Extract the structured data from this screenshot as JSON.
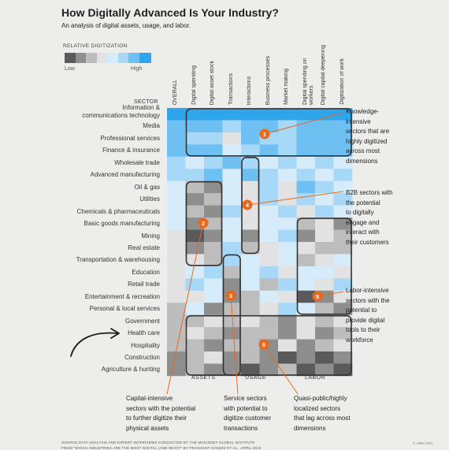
{
  "title": "How Digitally Advanced Is Your Industry?",
  "subtitle": "An analysis of digital assets, usage, and labor.",
  "legend": {
    "title": "RELATIVE DIGITIZATION",
    "low": "Low",
    "high": "High",
    "colors": [
      "#5a5a5a",
      "#8e8e8e",
      "#bdbdbd",
      "#e2e2e2",
      "#d6ecfb",
      "#a7d8f7",
      "#6fc0f2",
      "#2fa6ec"
    ]
  },
  "sector_heading": "SECTOR",
  "groups": [
    "ASSETS",
    "USAGE",
    "LABOR"
  ],
  "chart_data": {
    "type": "heatmap",
    "columns": [
      "OVERALL",
      "Digital spending",
      "Digital asset stock",
      "Transactions",
      "Interactions",
      "Business processes",
      "Market making",
      "Digital spending on workers",
      "Digital capital deepening",
      "Digitization of work"
    ],
    "rows": [
      "Information & communications technology",
      "Media",
      "Professional services",
      "Finance & insurance",
      "Wholesale trade",
      "Advanced manufacturing",
      "Oil & gas",
      "Utilities",
      "Chemicals & pharmaceuticals",
      "Basic goods manufacturing",
      "Mining",
      "Real estate",
      "Transportation & warehousing",
      "Education",
      "Retail trade",
      "Entertainment & recreation",
      "Personal & local services",
      "Government",
      "Health care",
      "Hospitality",
      "Construction",
      "Agriculture & hunting"
    ],
    "scale": "0 = lowest (dark gray) to 7 = highest (bright blue)",
    "values": [
      [
        7,
        7,
        7,
        7,
        7,
        7,
        7,
        7,
        7,
        7
      ],
      [
        6,
        6,
        6,
        5,
        6,
        6,
        5,
        6,
        6,
        6
      ],
      [
        6,
        5,
        5,
        3,
        6,
        5,
        5,
        6,
        6,
        6
      ],
      [
        6,
        6,
        6,
        4,
        5,
        6,
        5,
        6,
        6,
        6
      ],
      [
        5,
        4,
        5,
        6,
        5,
        4,
        5,
        4,
        5,
        4
      ],
      [
        5,
        5,
        6,
        4,
        6,
        5,
        4,
        5,
        4,
        5
      ],
      [
        4,
        2,
        1,
        4,
        3,
        5,
        3,
        6,
        5,
        4
      ],
      [
        4,
        1,
        2,
        4,
        3,
        5,
        3,
        5,
        4,
        5
      ],
      [
        4,
        2,
        1,
        5,
        3,
        4,
        5,
        3,
        5,
        4
      ],
      [
        4,
        1,
        2,
        4,
        3,
        4,
        4,
        2,
        3,
        1
      ],
      [
        3,
        0,
        1,
        4,
        1,
        4,
        5,
        1,
        3,
        2
      ],
      [
        3,
        1,
        2,
        5,
        2,
        3,
        4,
        3,
        2,
        2
      ],
      [
        3,
        3,
        2,
        5,
        4,
        3,
        4,
        2,
        3,
        4
      ],
      [
        3,
        4,
        5,
        2,
        4,
        5,
        3,
        4,
        4,
        3
      ],
      [
        3,
        5,
        4,
        1,
        4,
        2,
        5,
        4,
        3,
        5
      ],
      [
        3,
        3,
        4,
        1,
        2,
        4,
        3,
        0,
        1,
        3
      ],
      [
        2,
        4,
        1,
        2,
        2,
        3,
        5,
        4,
        2,
        1
      ],
      [
        2,
        2,
        3,
        2,
        3,
        2,
        1,
        3,
        2,
        3
      ],
      [
        2,
        3,
        2,
        1,
        2,
        2,
        1,
        3,
        1,
        2
      ],
      [
        2,
        2,
        1,
        2,
        2,
        1,
        3,
        1,
        2,
        3
      ],
      [
        1,
        2,
        3,
        1,
        2,
        1,
        0,
        1,
        0,
        1
      ],
      [
        1,
        2,
        1,
        1,
        0,
        1,
        2,
        0,
        1,
        0
      ]
    ]
  },
  "markers": [
    "1",
    "4",
    "2",
    "3",
    "5",
    "6"
  ],
  "callouts": {
    "knowledge": "Knowledge-\nintensive\nsectors that are\nhighly digitized\nacross most\ndimensions",
    "b2b": "B2B sectors with\nthe potential\nto digitally\nengage and\ninteract with\ntheir customers",
    "labor": "Labor-intensive\nsectors with the\npotential to\nprovide digital\ntools to their\nworkforce",
    "capital": "Capital-intensive\nsectors with the potential\nto further digitize their\nphysical assets",
    "service": "Service sectors\nwith potential to\ndigitize customer\ntransactions",
    "quasi": "Quasi-public/highly\nlocalized sectors\nthat lag across most\ndimensions"
  },
  "source": "SOURCE  DATA ANALYSIS AND EXPERT INTERVIEWS CONDUCTED BY THE MCKINSEY GLOBAL INSTITUTE",
  "from": "FROM  \"WHICH INDUSTRIES ARE THE MOST DIGITAL (AND WHY)?\" BY PRASHANT GANDHI ET AL., APRIL 2016",
  "credit": "© HBR.ORG"
}
